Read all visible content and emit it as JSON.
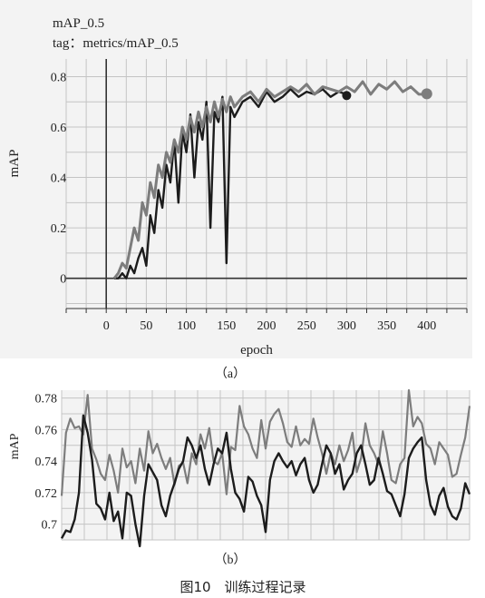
{
  "figure_caption": "图10　训练过程记录",
  "chart_data": [
    {
      "type": "line",
      "panel_label": "（a）",
      "title": "mAP_0.5",
      "subtitle": "tag：metrics/mAP_0.5",
      "xlabel": "epoch",
      "ylabel": "mAP",
      "xlim": [
        -50,
        450
      ],
      "ylim": [
        -0.12,
        0.87
      ],
      "x_ticks": [
        0,
        50,
        100,
        150,
        200,
        250,
        300,
        350,
        400
      ],
      "y_ticks": [
        0,
        0.2,
        0.4,
        0.6,
        0.8
      ],
      "y_tick_labels": [
        "0",
        "0.2",
        "0.4",
        "0.6",
        "0.8"
      ],
      "grid": true,
      "colors": {
        "background": "#f3f3f3",
        "grid": "#c4c4c4",
        "axis": "#333333",
        "series_dark": "#1c1c1c",
        "series_gray": "#7d7d7d"
      },
      "series": [
        {
          "color": "#1c1c1c",
          "x": [
            10,
            15,
            20,
            25,
            30,
            35,
            40,
            45,
            50,
            55,
            60,
            65,
            70,
            75,
            80,
            85,
            90,
            95,
            100,
            105,
            110,
            115,
            120,
            125,
            130,
            135,
            140,
            145,
            150,
            155,
            160,
            170,
            180,
            190,
            200,
            210,
            220,
            230,
            240,
            250,
            260,
            270,
            280,
            290,
            300
          ],
          "y": [
            0,
            0,
            0.02,
            0,
            0.05,
            0.02,
            0.08,
            0.12,
            0.05,
            0.25,
            0.18,
            0.35,
            0.28,
            0.45,
            0.38,
            0.55,
            0.3,
            0.58,
            0.5,
            0.65,
            0.4,
            0.62,
            0.55,
            0.7,
            0.2,
            0.66,
            0.62,
            0.72,
            0.06,
            0.68,
            0.64,
            0.7,
            0.72,
            0.68,
            0.74,
            0.7,
            0.72,
            0.75,
            0.72,
            0.74,
            0.73,
            0.75,
            0.72,
            0.74,
            0.73
          ]
        },
        {
          "color": "#7d7d7d",
          "x": [
            10,
            15,
            20,
            25,
            30,
            35,
            40,
            45,
            50,
            55,
            60,
            65,
            70,
            75,
            80,
            85,
            90,
            95,
            100,
            105,
            110,
            115,
            120,
            125,
            130,
            135,
            140,
            145,
            150,
            155,
            160,
            170,
            180,
            190,
            200,
            210,
            220,
            230,
            240,
            250,
            260,
            270,
            280,
            290,
            300,
            310,
            320,
            330,
            340,
            350,
            360,
            370,
            380,
            390,
            400
          ],
          "y": [
            0,
            0.02,
            0.06,
            0.04,
            0.12,
            0.2,
            0.15,
            0.3,
            0.25,
            0.38,
            0.32,
            0.45,
            0.4,
            0.5,
            0.46,
            0.55,
            0.5,
            0.6,
            0.55,
            0.64,
            0.58,
            0.66,
            0.6,
            0.68,
            0.62,
            0.7,
            0.64,
            0.71,
            0.66,
            0.72,
            0.68,
            0.72,
            0.74,
            0.7,
            0.75,
            0.72,
            0.74,
            0.76,
            0.74,
            0.77,
            0.73,
            0.76,
            0.75,
            0.74,
            0.76,
            0.74,
            0.78,
            0.73,
            0.77,
            0.75,
            0.78,
            0.74,
            0.76,
            0.73,
            0.73
          ]
        }
      ],
      "endpoints": [
        {
          "series": 0,
          "x": 300,
          "y": 0.725
        },
        {
          "series": 1,
          "x": 400,
          "y": 0.732
        }
      ]
    },
    {
      "type": "line",
      "panel_label": "（b）",
      "ylabel": "mAP",
      "ylim": [
        0.69,
        0.785
      ],
      "y_ticks": [
        0.7,
        0.72,
        0.74,
        0.76,
        0.78
      ],
      "y_tick_labels": [
        "0.7",
        "0.72",
        "0.74",
        "0.76",
        "0.78"
      ],
      "grid": true,
      "series": [
        {
          "color": "#7d7d7d",
          "y": [
            0.718,
            0.758,
            0.767,
            0.761,
            0.762,
            0.757,
            0.782,
            0.748,
            0.741,
            0.732,
            0.728,
            0.744,
            0.734,
            0.72,
            0.748,
            0.736,
            0.74,
            0.726,
            0.748,
            0.734,
            0.759,
            0.745,
            0.751,
            0.742,
            0.735,
            0.742,
            0.725,
            0.737,
            0.739,
            0.726,
            0.745,
            0.738,
            0.757,
            0.748,
            0.761,
            0.74,
            0.738,
            0.745,
            0.719,
            0.749,
            0.747,
            0.775,
            0.762,
            0.757,
            0.748,
            0.742,
            0.766,
            0.748,
            0.765,
            0.77,
            0.773,
            0.764,
            0.752,
            0.749,
            0.762,
            0.75,
            0.754,
            0.751,
            0.767,
            0.755,
            0.745,
            0.732,
            0.745,
            0.738,
            0.75,
            0.74,
            0.747,
            0.758,
            0.733,
            0.742,
            0.764,
            0.75,
            0.745,
            0.738,
            0.759,
            0.745,
            0.728,
            0.726,
            0.738,
            0.742,
            0.785,
            0.762,
            0.768,
            0.764,
            0.751,
            0.748,
            0.738,
            0.752,
            0.748,
            0.744,
            0.73,
            0.732,
            0.744,
            0.755,
            0.775
          ]
        },
        {
          "color": "#1c1c1c",
          "y": [
            0.691,
            0.696,
            0.695,
            0.703,
            0.72,
            0.769,
            0.758,
            0.741,
            0.713,
            0.71,
            0.703,
            0.72,
            0.702,
            0.708,
            0.691,
            0.72,
            0.718,
            0.7,
            0.686,
            0.718,
            0.738,
            0.733,
            0.728,
            0.712,
            0.705,
            0.718,
            0.726,
            0.735,
            0.74,
            0.755,
            0.75,
            0.742,
            0.75,
            0.735,
            0.725,
            0.738,
            0.748,
            0.745,
            0.758,
            0.735,
            0.72,
            0.716,
            0.708,
            0.73,
            0.727,
            0.718,
            0.712,
            0.695,
            0.728,
            0.74,
            0.745,
            0.74,
            0.736,
            0.74,
            0.731,
            0.738,
            0.742,
            0.728,
            0.72,
            0.725,
            0.738,
            0.75,
            0.745,
            0.732,
            0.738,
            0.722,
            0.728,
            0.732,
            0.745,
            0.75,
            0.738,
            0.725,
            0.728,
            0.742,
            0.732,
            0.721,
            0.719,
            0.712,
            0.705,
            0.719,
            0.742,
            0.748,
            0.752,
            0.755,
            0.728,
            0.712,
            0.706,
            0.718,
            0.723,
            0.711,
            0.705,
            0.703,
            0.71,
            0.726,
            0.719
          ]
        }
      ]
    }
  ]
}
